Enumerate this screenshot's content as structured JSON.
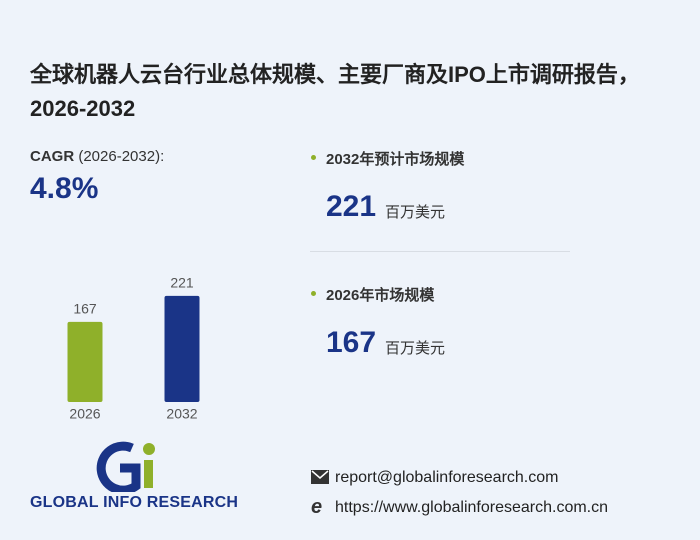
{
  "title": "全球机器人云台行业总体规模、主要厂商及IPO上市调研报告，2026-2032",
  "cagr": {
    "label": "CAGR",
    "period": "(2026-2032):",
    "value": "4.8%"
  },
  "stats": [
    {
      "label": "2032年预计市场规模",
      "unit": "百万美元"
    },
    {
      "label": "2026年市场规模",
      "unit": "百万美元"
    }
  ],
  "chart_data": {
    "type": "bar",
    "categories": [
      "2026",
      "2032"
    ],
    "values": [
      167,
      221
    ],
    "colors": [
      "#8fb02a",
      "#1a3487"
    ]
  },
  "logo": "GLOBAL INFO RESEARCH",
  "contact": {
    "email": "report@globalinforesearch.com",
    "website": "https://www.globalinforesearch.com.cn"
  }
}
